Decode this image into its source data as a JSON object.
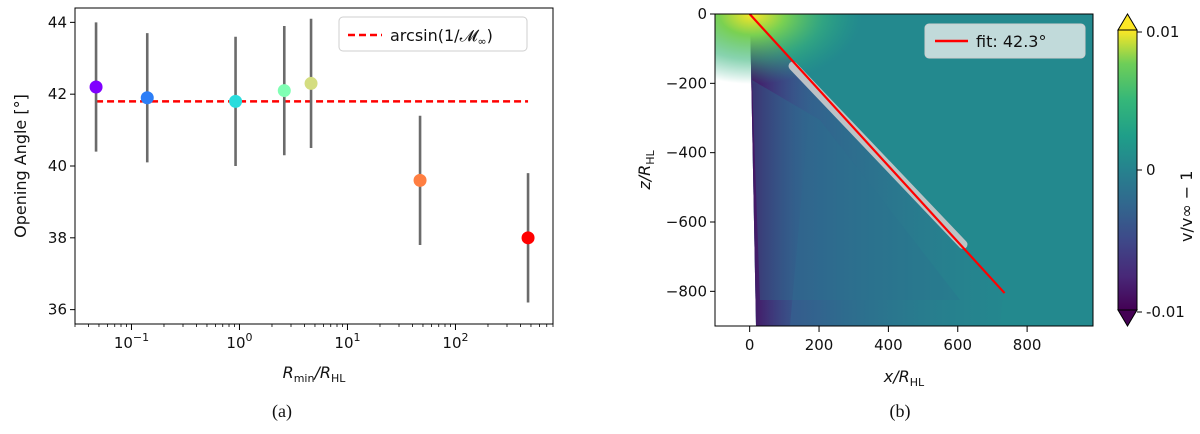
{
  "chart_data": [
    {
      "panel_label": "(a)",
      "type": "scatter",
      "xlabel_main": "R",
      "xlabel_sub": "min",
      "xlabel_mid": "/R",
      "xlabel_sub2": "HL",
      "ylabel": "Opening Angle [°]",
      "xscale": "log",
      "xlim": [
        0.03,
        800
      ],
      "ylim": [
        35.6,
        44.4
      ],
      "yticks": [
        36,
        38,
        40,
        42,
        44
      ],
      "xtick_labels": [
        {
          "base": "10",
          "exp": "−1",
          "value": 0.1
        },
        {
          "base": "10",
          "exp": "0",
          "value": 1
        },
        {
          "base": "10",
          "exp": "1",
          "value": 10
        },
        {
          "base": "10",
          "exp": "2",
          "value": 100
        }
      ],
      "points": [
        {
          "x": 0.047,
          "y": 42.2,
          "err": 1.8,
          "color": "#8000ff"
        },
        {
          "x": 0.14,
          "y": 41.9,
          "err": 1.8,
          "color": "#2c7ef7"
        },
        {
          "x": 0.92,
          "y": 41.8,
          "err": 1.8,
          "color": "#2adddd"
        },
        {
          "x": 2.6,
          "y": 42.1,
          "err": 1.8,
          "color": "#80ffb4"
        },
        {
          "x": 4.6,
          "y": 42.3,
          "err": 1.8,
          "color": "#d4dd80"
        },
        {
          "x": 47,
          "y": 39.6,
          "err": 1.8,
          "color": "#ff7e41"
        },
        {
          "x": 470,
          "y": 38.0,
          "err": 1.8,
          "color": "#ff0000"
        }
      ],
      "reference_line": {
        "y": 41.8,
        "x_start": 0.047,
        "x_end": 470,
        "color": "#ff0000"
      },
      "legend": {
        "label": "arcsin(1/𝓜",
        "label_sub": "∞",
        "label_end": ")",
        "position": "top-right"
      }
    },
    {
      "panel_label": "(b)",
      "type": "heatmap",
      "xlabel_main": "x/R",
      "xlabel_sub": "HL",
      "ylabel_main": "z/R",
      "ylabel_sub": "HL",
      "xlim": [
        -100,
        990
      ],
      "ylim": [
        -900,
        0
      ],
      "xticks": [
        0,
        200,
        400,
        600,
        800
      ],
      "yticks": [
        0,
        -200,
        -400,
        -600,
        -800
      ],
      "colorbar": {
        "label": "v/v∞ − 1",
        "ticks": [
          "0.01",
          "0",
          "-0.01"
        ],
        "range": [
          -0.01,
          0.01
        ],
        "colormap": "viridis"
      },
      "fit_line": {
        "x": [
          0,
          735
        ],
        "z": [
          0,
          -805
        ],
        "color": "#ff0000"
      },
      "highlight_segment": {
        "x": [
          125,
          615
        ],
        "z": [
          -150,
          -665
        ]
      },
      "legend": {
        "label": "fit: 42.3°",
        "position": "top-right"
      }
    }
  ]
}
